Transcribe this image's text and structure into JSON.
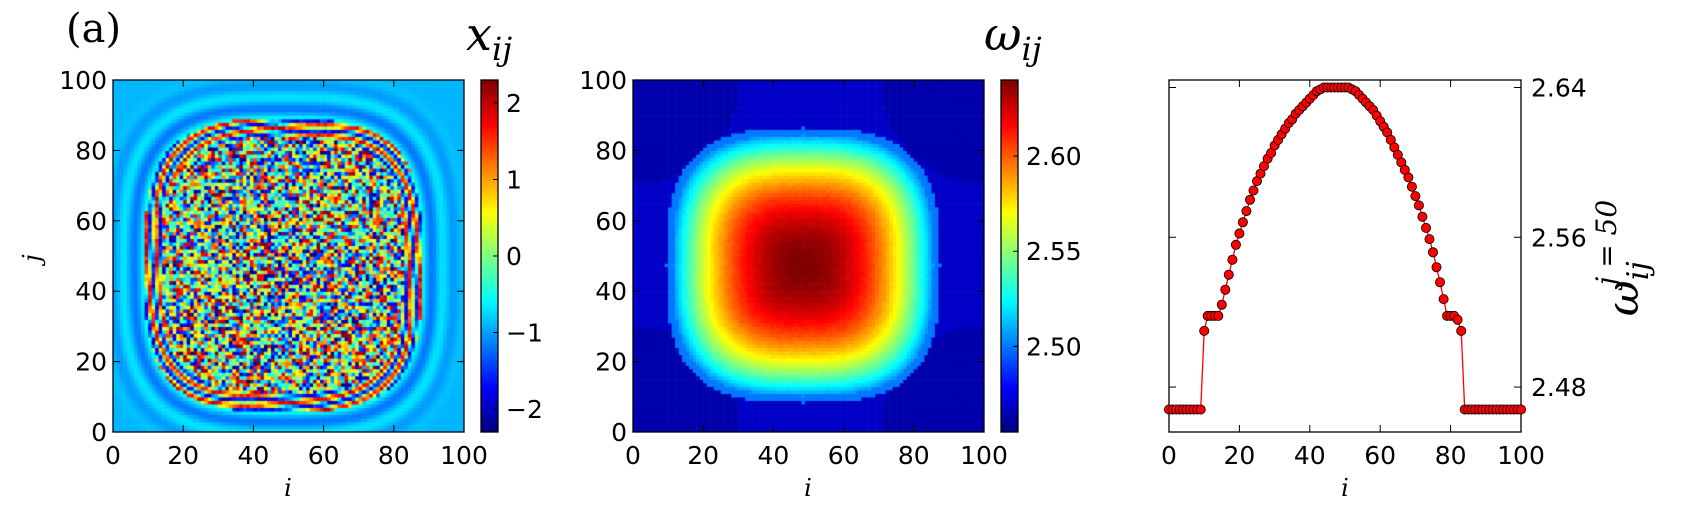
{
  "figure_label": "(a)",
  "chart_data": [
    {
      "type": "heatmap",
      "title": "x_ij",
      "title_text": "x",
      "title_sub": "ij",
      "xlabel": "i",
      "ylabel": "j",
      "xlim": [
        0,
        100
      ],
      "ylim": [
        0,
        100
      ],
      "xticks": [
        0,
        20,
        40,
        60,
        80,
        100
      ],
      "yticks": [
        0,
        20,
        40,
        60,
        80,
        100
      ],
      "colorbar": {
        "min": -2.3,
        "max": 2.3,
        "ticks": [
          -2,
          -1,
          0,
          1,
          2
        ],
        "tick_labels": [
          "−2",
          "−1",
          "0",
          "1",
          "2"
        ],
        "colormap": "jet"
      },
      "description_values": {
        "outside_value": -0.9,
        "interior": "random values in [-2.3, 2.3] inside radius ~35 centered at (48, 47)",
        "ring_radius": 38
      }
    },
    {
      "type": "heatmap",
      "title": "ω_ij",
      "title_text": "ω",
      "title_sub": "ij",
      "xlabel": "i",
      "ylabel": "",
      "xlim": [
        0,
        100
      ],
      "ylim": [
        0,
        100
      ],
      "xticks": [
        0,
        20,
        40,
        60,
        80,
        100
      ],
      "yticks": [
        0,
        20,
        40,
        60,
        80,
        100
      ],
      "colorbar": {
        "min": 2.455,
        "max": 2.64,
        "ticks": [
          2.5,
          2.55,
          2.6
        ],
        "tick_labels": [
          "2.50",
          "2.55",
          "2.60"
        ],
        "colormap": "jet"
      },
      "center": [
        48,
        47
      ],
      "peak_value": 2.64,
      "base_value": 2.468
    },
    {
      "type": "line",
      "xlabel": "i",
      "ylabel": "ω_ij^{j=50}",
      "ylabel_text": "ω",
      "ylabel_sub": "ij",
      "ylabel_sup": "j = 50",
      "xlim": [
        0,
        100
      ],
      "ylim": [
        2.456,
        2.644
      ],
      "xticks": [
        0,
        20,
        40,
        60,
        80,
        100
      ],
      "yticks": [
        2.48,
        2.56,
        2.64
      ],
      "ytick_labels": [
        "2.48",
        "2.56",
        "2.64"
      ],
      "series": [
        {
          "color": "#ff0000",
          "marker": "circle",
          "x": [
            0,
            1,
            2,
            3,
            4,
            5,
            6,
            7,
            8,
            9,
            10,
            11,
            12,
            13,
            14,
            15,
            16,
            17,
            18,
            19,
            20,
            21,
            22,
            23,
            24,
            25,
            26,
            27,
            28,
            29,
            30,
            31,
            32,
            33,
            34,
            35,
            36,
            37,
            38,
            39,
            40,
            41,
            42,
            43,
            44,
            45,
            46,
            47,
            48,
            49,
            50,
            51,
            52,
            53,
            54,
            55,
            56,
            57,
            58,
            59,
            60,
            61,
            62,
            63,
            64,
            65,
            66,
            67,
            68,
            69,
            70,
            71,
            72,
            73,
            74,
            75,
            76,
            77,
            78,
            79,
            80,
            81,
            82,
            83,
            84,
            85,
            86,
            87,
            88,
            89,
            90,
            91,
            92,
            93,
            94,
            95,
            96,
            97,
            98,
            99,
            100
          ],
          "y": [
            2.468,
            2.468,
            2.468,
            2.468,
            2.468,
            2.468,
            2.468,
            2.468,
            2.468,
            2.468,
            2.51,
            2.518,
            2.518,
            2.518,
            2.518,
            2.524,
            2.532,
            2.54,
            2.548,
            2.556,
            2.562,
            2.568,
            2.574,
            2.58,
            2.585,
            2.59,
            2.594,
            2.598,
            2.602,
            2.605,
            2.609,
            2.612,
            2.615,
            2.618,
            2.621,
            2.623,
            2.626,
            2.628,
            2.63,
            2.632,
            2.634,
            2.636,
            2.638,
            2.639,
            2.64,
            2.64,
            2.64,
            2.64,
            2.64,
            2.64,
            2.64,
            2.64,
            2.639,
            2.638,
            2.636,
            2.634,
            2.632,
            2.63,
            2.628,
            2.625,
            2.622,
            2.619,
            2.616,
            2.612,
            2.608,
            2.604,
            2.6,
            2.596,
            2.592,
            2.587,
            2.582,
            2.577,
            2.571,
            2.565,
            2.559,
            2.552,
            2.544,
            2.536,
            2.527,
            2.518,
            2.518,
            2.518,
            2.516,
            2.51,
            2.468,
            2.468,
            2.468,
            2.468,
            2.468,
            2.468,
            2.468,
            2.468,
            2.468,
            2.468,
            2.468,
            2.468,
            2.468,
            2.468,
            2.468,
            2.468,
            2.468
          ]
        }
      ]
    }
  ]
}
